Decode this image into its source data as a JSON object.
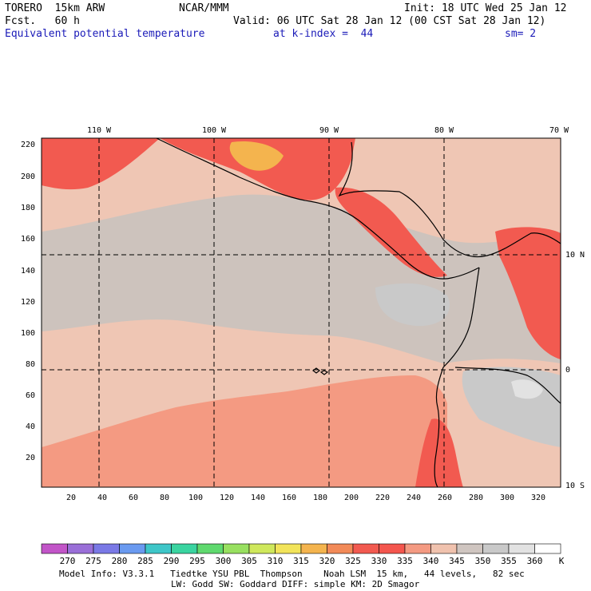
{
  "header": {
    "model": "TORERO  15km ARW",
    "org": "NCAR/MMM",
    "init": "Init: 18 UTC Wed 25 Jan 12",
    "fcst": "Fcst.   60 h",
    "valid": "Valid: 06 UTC Sat 28 Jan 12 (00 CST Sat 28 Jan 12)",
    "field": "Equivalent potential temperature",
    "level": "at k-index =  44",
    "smooth": "sm= 2"
  },
  "map": {
    "top_lon_labels": [
      "110 W",
      "100 W",
      "90 W",
      "80 W",
      "70 W"
    ],
    "right_lat_labels": [
      "10 N",
      "0",
      "10 S"
    ],
    "y_ticks": [
      "220",
      "200",
      "180",
      "160",
      "140",
      "120",
      "100",
      "80",
      "60",
      "40",
      "20"
    ],
    "x_ticks": [
      "20",
      "40",
      "60",
      "80",
      "100",
      "120",
      "140",
      "160",
      "180",
      "200",
      "220",
      "240",
      "260",
      "280",
      "300",
      "320"
    ],
    "background_color": "#efc6b4"
  },
  "colorbar": {
    "labels": [
      "270",
      "275",
      "280",
      "285",
      "290",
      "295",
      "300",
      "305",
      "310",
      "315",
      "320",
      "325",
      "330",
      "335",
      "340",
      "345",
      "350",
      "355",
      "360"
    ],
    "unit": "K",
    "colors": [
      "#c255c8",
      "#9a6fd8",
      "#7a79e6",
      "#6a9af0",
      "#3ec6c8",
      "#3ad4a0",
      "#5fd96e",
      "#98e060",
      "#cfe85c",
      "#f2e45a",
      "#f4b44e",
      "#f28a58",
      "#f25a50",
      "#f4564e",
      "#f49a82",
      "#f0c2ae",
      "#cfc5c0",
      "#c9c9c9",
      "#e2e2e2",
      "#ffffff"
    ]
  },
  "footer": {
    "line1": "Model Info: V3.3.1   Tiedtke YSU PBL  Thompson    Noah LSM  15 km,   44 levels,   82 sec",
    "line2": "LW: Godd SW: Goddard DIFF: simple KM: 2D Smagor"
  }
}
